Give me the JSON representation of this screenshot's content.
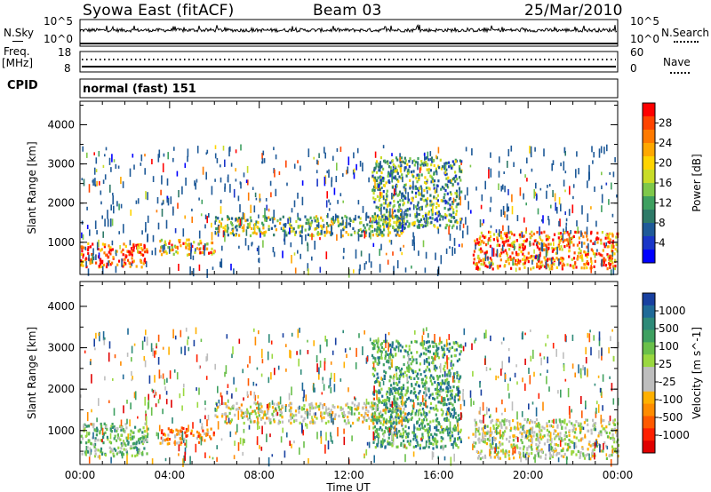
{
  "header": {
    "station": "Syowa East (fitACF)",
    "beam": "Beam 03",
    "date": "25/Mar/2010"
  },
  "noise_panel": {
    "left_label": "N.Sky",
    "left_ticks": [
      "10^5",
      "10^0"
    ],
    "right_ticks": [
      "10^5",
      "10^0"
    ],
    "right_label": "N.Search"
  },
  "freq_panel": {
    "left_label_1": "Freq.",
    "left_label_2": "[MHz]",
    "left_ticks": [
      "18",
      "8"
    ],
    "right_ticks": [
      "60",
      "0"
    ],
    "right_label": "Nave"
  },
  "cpid": {
    "label": "CPID",
    "mode": "normal (fast) 151"
  },
  "chart_data": [
    {
      "type": "heatmap",
      "parameter": "Power",
      "ylabel": "Slant Range [km]",
      "xlabel": "Time UT",
      "ylim": [
        180,
        4600
      ],
      "yticks": [
        "1000",
        "2000",
        "3000",
        "4000"
      ],
      "xticks": [
        "00:00",
        "04:00",
        "08:00",
        "12:00",
        "16:00",
        "20:00",
        "00:00"
      ],
      "colorbar": {
        "label": "Power [dB]",
        "ticks": [
          "28",
          "24",
          "20",
          "16",
          "12",
          "8",
          "4"
        ],
        "colors": [
          "#ff0000",
          "#ff4400",
          "#ff7a00",
          "#ffa800",
          "#ffd400",
          "#c8dc28",
          "#7ec84a",
          "#3ea060",
          "#2e7a68",
          "#1f5a98",
          "#1a36c8",
          "#0000ff"
        ]
      },
      "echo_regions_approx": [
        {
          "t_start": "00:00",
          "t_end": "03:00",
          "range_km": [
            400,
            1000
          ],
          "level_dB": "20-28"
        },
        {
          "t_start": "03:30",
          "t_end": "06:00",
          "range_km": [
            700,
            1100
          ],
          "level_dB": "16-24"
        },
        {
          "t_start": "06:00",
          "t_end": "14:30",
          "range_km": [
            1200,
            1700
          ],
          "level_dB": "8-20"
        },
        {
          "t_start": "13:00",
          "t_end": "17:00",
          "range_km": [
            1400,
            3200
          ],
          "level_dB": "4-16"
        },
        {
          "t_start": "17:30",
          "t_end": "24:00",
          "range_km": [
            350,
            1300
          ],
          "level_dB": "16-28"
        }
      ]
    },
    {
      "type": "heatmap",
      "parameter": "Velocity",
      "ylabel": "Slant Range [km]",
      "xlabel": "Time UT",
      "ylim": [
        180,
        4600
      ],
      "yticks": [
        "1000",
        "2000",
        "3000",
        "4000"
      ],
      "xticks": [
        "00:00",
        "04:00",
        "08:00",
        "12:00",
        "16:00",
        "20:00",
        "00:00"
      ],
      "colorbar": {
        "label": "Velocity [m s^-1]",
        "ticks": [
          "1000",
          "500",
          "100",
          "25",
          "-25",
          "-100",
          "-500",
          "-1000"
        ],
        "colors": [
          "#1840a0",
          "#1f6a98",
          "#2e8a78",
          "#3ea060",
          "#6ac04a",
          "#9ad840",
          "#bebebe",
          "#bebebe",
          "#ffb000",
          "#ff8c00",
          "#ff5a00",
          "#ff2000",
          "#e00000"
        ]
      },
      "echo_regions_approx": [
        {
          "t_start": "00:00",
          "t_end": "03:00",
          "range_km": [
            400,
            1200
          ],
          "velocity_ms": "25 to 500"
        },
        {
          "t_start": "03:30",
          "t_end": "06:00",
          "range_km": [
            700,
            1100
          ],
          "velocity_ms": "-100 to -500"
        },
        {
          "t_start": "06:00",
          "t_end": "14:30",
          "range_km": [
            1200,
            1700
          ],
          "velocity_ms": "-25 to 25"
        },
        {
          "t_start": "13:00",
          "t_end": "17:00",
          "range_km": [
            600,
            3200
          ],
          "velocity_ms": "100 to 500"
        },
        {
          "t_start": "17:30",
          "t_end": "24:00",
          "range_km": [
            350,
            1300
          ],
          "velocity_ms": "-100 to 500"
        }
      ]
    }
  ]
}
